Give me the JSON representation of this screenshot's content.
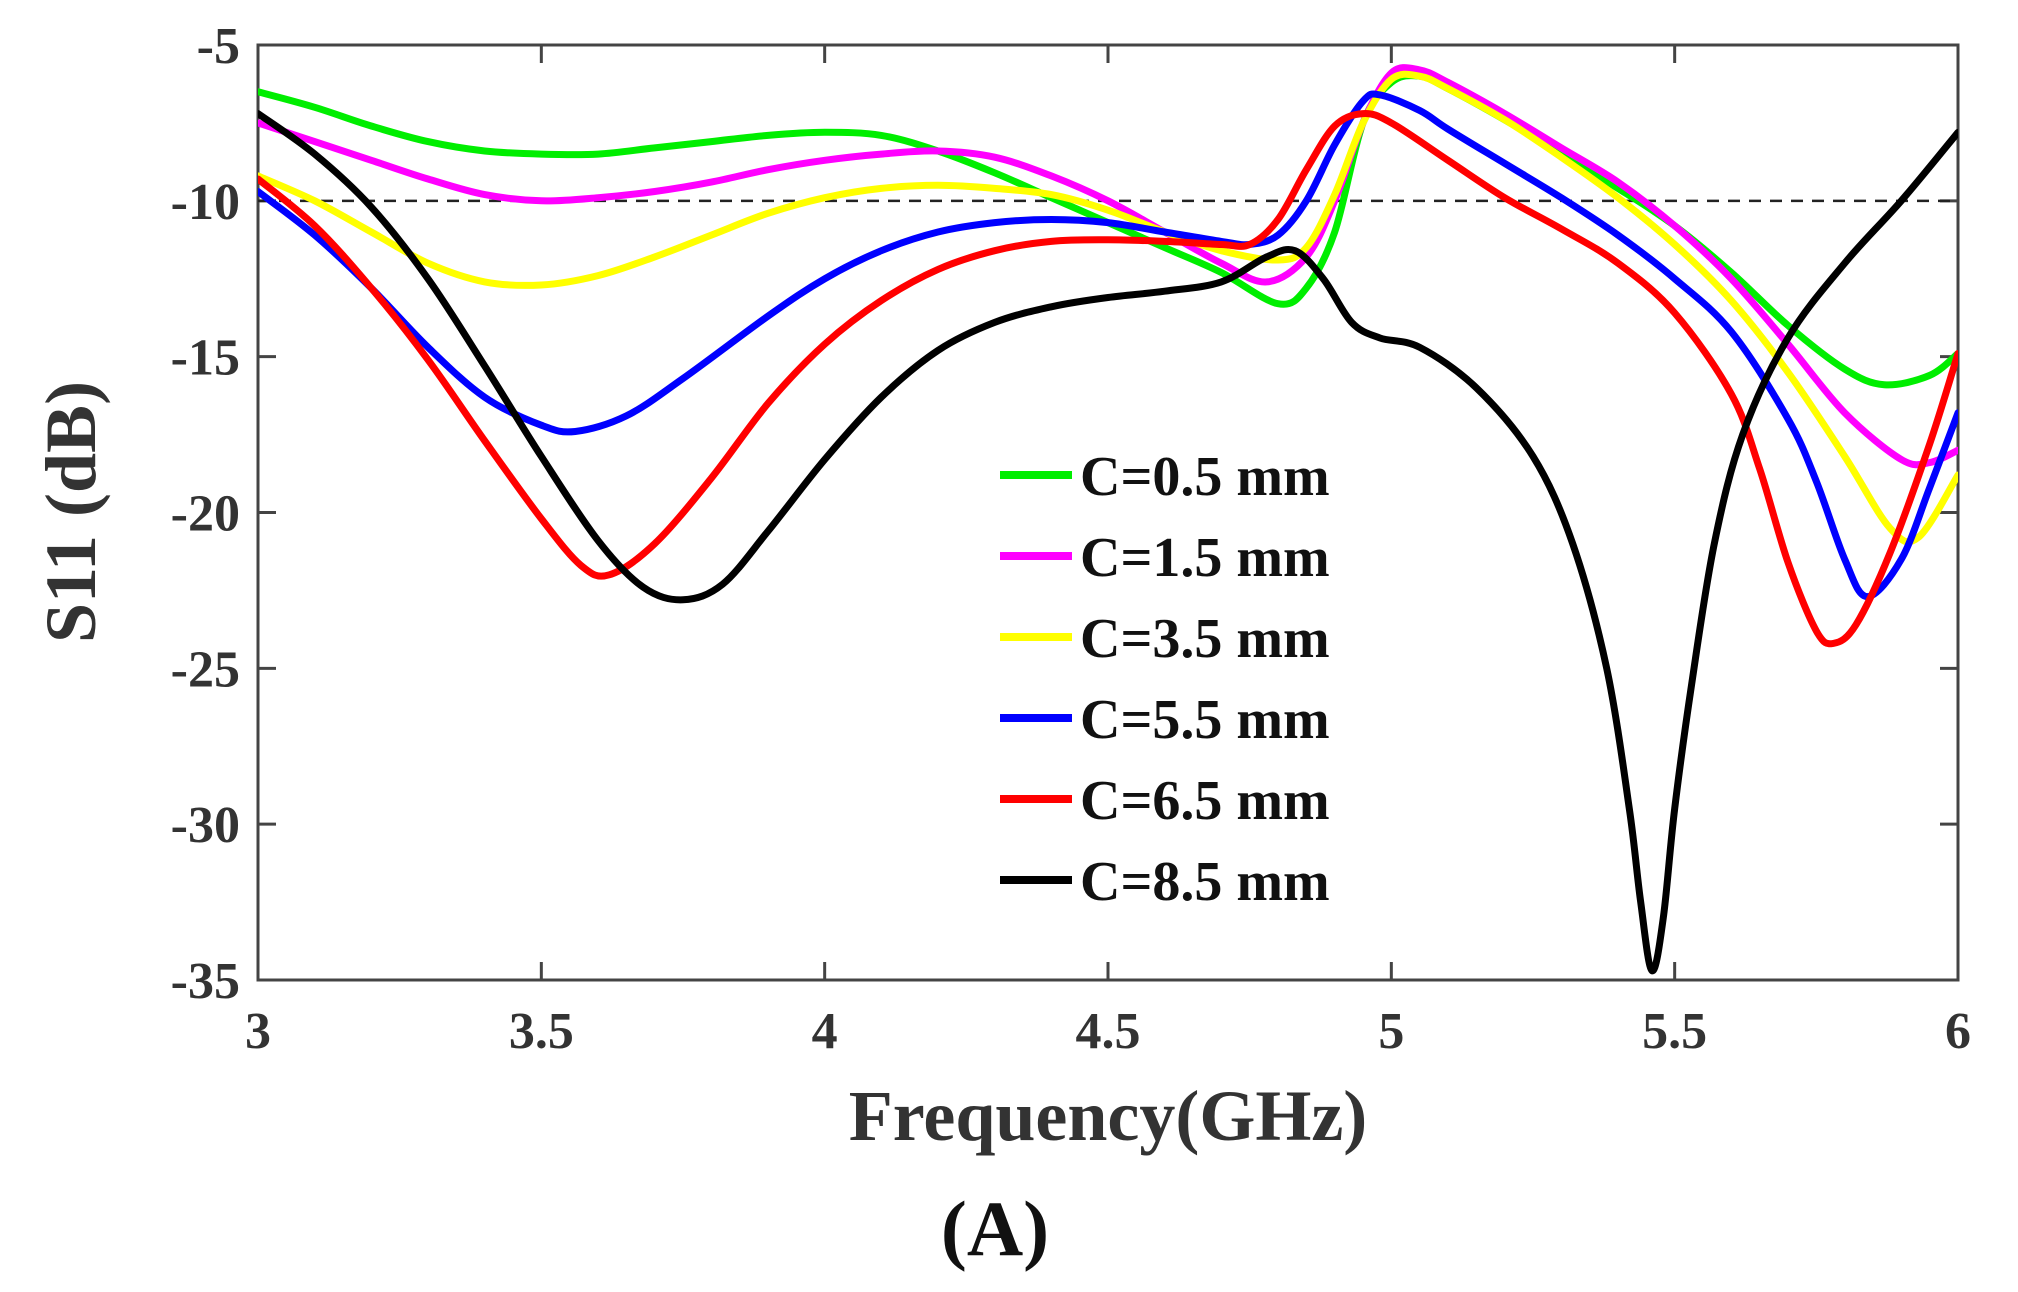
{
  "chart_data": {
    "type": "line",
    "title": "",
    "xlabel": "Frequency(GHz)",
    "ylabel": "S11 (dB)",
    "panel_label": "(A)",
    "xlim": [
      3,
      6
    ],
    "ylim": [
      -35,
      -5
    ],
    "xticks": [
      3,
      3.5,
      4,
      4.5,
      5,
      5.5,
      6
    ],
    "xtick_labels": [
      "3",
      "3.5",
      "4",
      "4.5",
      "5",
      "5.5",
      "6"
    ],
    "yticks": [
      -5,
      -10,
      -15,
      -20,
      -25,
      -30,
      -35
    ],
    "ytick_labels": [
      "-5",
      "-10",
      "-15",
      "-20",
      "-25",
      "-30",
      "-35"
    ],
    "grid": false,
    "legend_position": "center",
    "reference_line": {
      "y": -10,
      "style": "dashed"
    },
    "series": [
      {
        "name": "C=0.5 mm",
        "color": "#00ee00",
        "points": [
          [
            3.0,
            -6.5
          ],
          [
            3.1,
            -7.0
          ],
          [
            3.2,
            -7.6
          ],
          [
            3.3,
            -8.1
          ],
          [
            3.4,
            -8.4
          ],
          [
            3.5,
            -8.5
          ],
          [
            3.6,
            -8.5
          ],
          [
            3.7,
            -8.3
          ],
          [
            3.8,
            -8.1
          ],
          [
            3.9,
            -7.9
          ],
          [
            4.0,
            -7.8
          ],
          [
            4.1,
            -7.9
          ],
          [
            4.2,
            -8.4
          ],
          [
            4.3,
            -9.1
          ],
          [
            4.4,
            -9.9
          ],
          [
            4.5,
            -10.7
          ],
          [
            4.6,
            -11.5
          ],
          [
            4.7,
            -12.3
          ],
          [
            4.8,
            -13.3
          ],
          [
            4.85,
            -12.8
          ],
          [
            4.9,
            -11.0
          ],
          [
            4.95,
            -7.5
          ],
          [
            5.0,
            -6.2
          ],
          [
            5.05,
            -6.0
          ],
          [
            5.1,
            -6.4
          ],
          [
            5.2,
            -7.4
          ],
          [
            5.3,
            -8.5
          ],
          [
            5.4,
            -9.6
          ],
          [
            5.5,
            -10.8
          ],
          [
            5.6,
            -12.3
          ],
          [
            5.7,
            -14.0
          ],
          [
            5.8,
            -15.4
          ],
          [
            5.87,
            -15.9
          ],
          [
            5.95,
            -15.6
          ],
          [
            6.0,
            -14.9
          ]
        ]
      },
      {
        "name": "C=1.5 mm",
        "color": "#ff00ff",
        "points": [
          [
            3.0,
            -7.5
          ],
          [
            3.1,
            -8.1
          ],
          [
            3.2,
            -8.7
          ],
          [
            3.3,
            -9.3
          ],
          [
            3.4,
            -9.8
          ],
          [
            3.5,
            -10.0
          ],
          [
            3.6,
            -9.9
          ],
          [
            3.7,
            -9.7
          ],
          [
            3.8,
            -9.4
          ],
          [
            3.9,
            -9.0
          ],
          [
            4.0,
            -8.7
          ],
          [
            4.1,
            -8.5
          ],
          [
            4.2,
            -8.4
          ],
          [
            4.3,
            -8.6
          ],
          [
            4.4,
            -9.2
          ],
          [
            4.5,
            -10.0
          ],
          [
            4.6,
            -11.0
          ],
          [
            4.7,
            -12.0
          ],
          [
            4.78,
            -12.6
          ],
          [
            4.85,
            -11.8
          ],
          [
            4.9,
            -10.0
          ],
          [
            4.95,
            -7.5
          ],
          [
            5.0,
            -5.9
          ],
          [
            5.05,
            -5.8
          ],
          [
            5.1,
            -6.2
          ],
          [
            5.2,
            -7.2
          ],
          [
            5.3,
            -8.3
          ],
          [
            5.4,
            -9.4
          ],
          [
            5.5,
            -10.8
          ],
          [
            5.6,
            -12.5
          ],
          [
            5.7,
            -14.6
          ],
          [
            5.8,
            -16.8
          ],
          [
            5.9,
            -18.3
          ],
          [
            5.95,
            -18.4
          ],
          [
            6.0,
            -18.0
          ]
        ]
      },
      {
        "name": "C=3.5 mm",
        "color": "#ffff00",
        "points": [
          [
            3.0,
            -9.2
          ],
          [
            3.1,
            -10.0
          ],
          [
            3.2,
            -11.0
          ],
          [
            3.3,
            -12.0
          ],
          [
            3.4,
            -12.6
          ],
          [
            3.5,
            -12.7
          ],
          [
            3.6,
            -12.4
          ],
          [
            3.7,
            -11.8
          ],
          [
            3.8,
            -11.1
          ],
          [
            3.9,
            -10.4
          ],
          [
            4.0,
            -9.9
          ],
          [
            4.1,
            -9.6
          ],
          [
            4.2,
            -9.5
          ],
          [
            4.3,
            -9.6
          ],
          [
            4.4,
            -9.8
          ],
          [
            4.5,
            -10.3
          ],
          [
            4.6,
            -11.0
          ],
          [
            4.7,
            -11.6
          ],
          [
            4.8,
            -11.9
          ],
          [
            4.85,
            -11.5
          ],
          [
            4.9,
            -9.8
          ],
          [
            4.95,
            -7.5
          ],
          [
            5.0,
            -6.1
          ],
          [
            5.05,
            -6.0
          ],
          [
            5.1,
            -6.4
          ],
          [
            5.2,
            -7.4
          ],
          [
            5.3,
            -8.6
          ],
          [
            5.4,
            -9.9
          ],
          [
            5.5,
            -11.4
          ],
          [
            5.6,
            -13.2
          ],
          [
            5.7,
            -15.5
          ],
          [
            5.8,
            -18.2
          ],
          [
            5.88,
            -20.5
          ],
          [
            5.93,
            -20.8
          ],
          [
            6.0,
            -18.8
          ]
        ]
      },
      {
        "name": "C=5.5 mm",
        "color": "#0000ff",
        "points": [
          [
            3.0,
            -9.7
          ],
          [
            3.1,
            -11.1
          ],
          [
            3.2,
            -12.8
          ],
          [
            3.3,
            -14.7
          ],
          [
            3.4,
            -16.3
          ],
          [
            3.5,
            -17.2
          ],
          [
            3.56,
            -17.4
          ],
          [
            3.65,
            -16.9
          ],
          [
            3.75,
            -15.7
          ],
          [
            3.9,
            -13.7
          ],
          [
            4.0,
            -12.5
          ],
          [
            4.1,
            -11.6
          ],
          [
            4.2,
            -11.0
          ],
          [
            4.3,
            -10.7
          ],
          [
            4.4,
            -10.6
          ],
          [
            4.5,
            -10.7
          ],
          [
            4.6,
            -11.0
          ],
          [
            4.7,
            -11.3
          ],
          [
            4.75,
            -11.4
          ],
          [
            4.8,
            -11.1
          ],
          [
            4.85,
            -10.0
          ],
          [
            4.9,
            -8.2
          ],
          [
            4.95,
            -6.8
          ],
          [
            4.98,
            -6.6
          ],
          [
            5.05,
            -7.1
          ],
          [
            5.1,
            -7.7
          ],
          [
            5.2,
            -8.8
          ],
          [
            5.3,
            -9.9
          ],
          [
            5.4,
            -11.1
          ],
          [
            5.5,
            -12.5
          ],
          [
            5.6,
            -14.2
          ],
          [
            5.7,
            -17.0
          ],
          [
            5.75,
            -19.0
          ],
          [
            5.8,
            -21.5
          ],
          [
            5.84,
            -22.7
          ],
          [
            5.9,
            -21.5
          ],
          [
            5.95,
            -19.2
          ],
          [
            6.0,
            -16.8
          ]
        ]
      },
      {
        "name": "C=6.5 mm",
        "color": "#ff0000",
        "points": [
          [
            3.0,
            -9.3
          ],
          [
            3.1,
            -10.8
          ],
          [
            3.2,
            -12.8
          ],
          [
            3.3,
            -15.1
          ],
          [
            3.4,
            -17.7
          ],
          [
            3.5,
            -20.2
          ],
          [
            3.57,
            -21.7
          ],
          [
            3.62,
            -22.0
          ],
          [
            3.7,
            -21.0
          ],
          [
            3.8,
            -18.9
          ],
          [
            3.9,
            -16.5
          ],
          [
            4.0,
            -14.6
          ],
          [
            4.1,
            -13.2
          ],
          [
            4.2,
            -12.2
          ],
          [
            4.3,
            -11.6
          ],
          [
            4.4,
            -11.3
          ],
          [
            4.5,
            -11.25
          ],
          [
            4.6,
            -11.3
          ],
          [
            4.7,
            -11.4
          ],
          [
            4.75,
            -11.4
          ],
          [
            4.8,
            -10.6
          ],
          [
            4.85,
            -9.0
          ],
          [
            4.9,
            -7.6
          ],
          [
            4.95,
            -7.2
          ],
          [
            5.0,
            -7.5
          ],
          [
            5.1,
            -8.7
          ],
          [
            5.2,
            -9.9
          ],
          [
            5.3,
            -10.9
          ],
          [
            5.4,
            -12.0
          ],
          [
            5.5,
            -13.6
          ],
          [
            5.6,
            -16.2
          ],
          [
            5.65,
            -18.6
          ],
          [
            5.7,
            -21.6
          ],
          [
            5.75,
            -23.8
          ],
          [
            5.78,
            -24.2
          ],
          [
            5.82,
            -23.6
          ],
          [
            5.88,
            -21.3
          ],
          [
            5.95,
            -17.8
          ],
          [
            6.0,
            -14.9
          ]
        ]
      },
      {
        "name": "C=8.5 mm",
        "color": "#000000",
        "points": [
          [
            3.0,
            -7.2
          ],
          [
            3.1,
            -8.5
          ],
          [
            3.2,
            -10.2
          ],
          [
            3.3,
            -12.5
          ],
          [
            3.4,
            -15.3
          ],
          [
            3.5,
            -18.2
          ],
          [
            3.6,
            -20.9
          ],
          [
            3.68,
            -22.4
          ],
          [
            3.75,
            -22.8
          ],
          [
            3.82,
            -22.3
          ],
          [
            3.9,
            -20.6
          ],
          [
            4.0,
            -18.3
          ],
          [
            4.1,
            -16.3
          ],
          [
            4.2,
            -14.8
          ],
          [
            4.3,
            -13.9
          ],
          [
            4.4,
            -13.4
          ],
          [
            4.5,
            -13.1
          ],
          [
            4.6,
            -12.9
          ],
          [
            4.7,
            -12.6
          ],
          [
            4.78,
            -11.8
          ],
          [
            4.83,
            -11.6
          ],
          [
            4.88,
            -12.5
          ],
          [
            4.93,
            -13.9
          ],
          [
            4.98,
            -14.4
          ],
          [
            5.05,
            -14.7
          ],
          [
            5.15,
            -16.0
          ],
          [
            5.25,
            -18.2
          ],
          [
            5.32,
            -21.0
          ],
          [
            5.38,
            -25.0
          ],
          [
            5.42,
            -29.5
          ],
          [
            5.44,
            -32.5
          ],
          [
            5.46,
            -34.7
          ],
          [
            5.48,
            -33.0
          ],
          [
            5.5,
            -29.5
          ],
          [
            5.53,
            -25.5
          ],
          [
            5.57,
            -21.0
          ],
          [
            5.62,
            -17.5
          ],
          [
            5.7,
            -14.4
          ],
          [
            5.8,
            -12.0
          ],
          [
            5.9,
            -10.0
          ],
          [
            6.0,
            -7.8
          ]
        ]
      }
    ]
  }
}
